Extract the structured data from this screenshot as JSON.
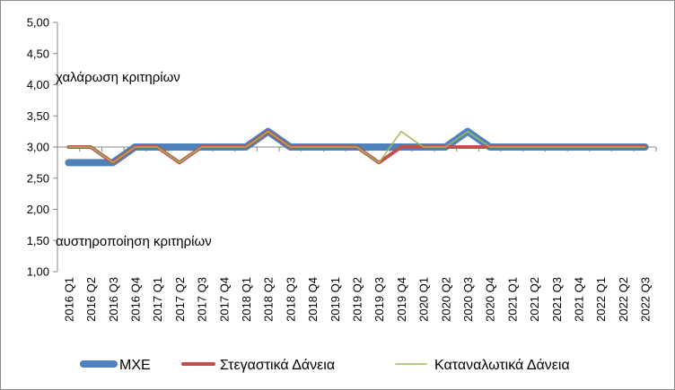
{
  "chart_data": {
    "type": "line",
    "categories": [
      "2016 Q1",
      "2016 Q2",
      "2016 Q3",
      "2016 Q4",
      "2017 Q1",
      "2017 Q2",
      "2017 Q3",
      "2017 Q4",
      "2018 Q1",
      "2018 Q2",
      "2018 Q3",
      "2018 Q4",
      "2019 Q1",
      "2019 Q2",
      "2019 Q3",
      "2019 Q4",
      "2020 Q1",
      "2020 Q2",
      "2020 Q3",
      "2020 Q4",
      "2021 Q1",
      "2021 Q2",
      "2021 Q3",
      "2021 Q4",
      "2022 Q1",
      "2022 Q2",
      "2022 Q3"
    ],
    "series": [
      {
        "name": "ΜΧΕ",
        "color": "#4f81bd",
        "width": 8,
        "values": [
          2.75,
          2.75,
          2.75,
          3.0,
          3.0,
          3.0,
          3.0,
          3.0,
          3.0,
          3.25,
          3.0,
          3.0,
          3.0,
          3.0,
          3.0,
          3.0,
          3.0,
          3.0,
          3.25,
          3.0,
          3.0,
          3.0,
          3.0,
          3.0,
          3.0,
          3.0,
          3.0
        ]
      },
      {
        "name": "Στεγαστικά Δάνεια",
        "color": "#c0504d",
        "width": 4,
        "values": [
          3.0,
          3.0,
          2.75,
          3.0,
          3.0,
          2.75,
          3.0,
          3.0,
          3.0,
          3.25,
          3.0,
          3.0,
          3.0,
          3.0,
          2.75,
          3.0,
          3.0,
          3.0,
          3.0,
          3.0,
          3.0,
          3.0,
          3.0,
          3.0,
          3.0,
          3.0,
          3.0
        ]
      },
      {
        "name": "Καταναλωτικά Δάνεια",
        "color": "#9bbb59",
        "width": 1.5,
        "values": [
          3.0,
          3.0,
          2.75,
          3.0,
          3.0,
          2.75,
          3.0,
          3.0,
          3.0,
          3.25,
          3.0,
          3.0,
          3.0,
          3.0,
          2.75,
          3.25,
          3.0,
          3.0,
          3.25,
          3.0,
          3.0,
          3.0,
          3.0,
          3.0,
          3.0,
          3.0,
          3.0
        ]
      }
    ],
    "y_ticks": [
      "1,00",
      "1,50",
      "2,00",
      "2,50",
      "3,00",
      "3,50",
      "4,00",
      "4,50",
      "5,00"
    ],
    "ylim": [
      1.0,
      5.0
    ],
    "baseline": 3.0,
    "annotations": {
      "top": "χαλάρωση κριτηρίων",
      "bottom": "αυστηροποίηση κριτηρίων"
    },
    "legend_position": "bottom",
    "grid": false
  }
}
